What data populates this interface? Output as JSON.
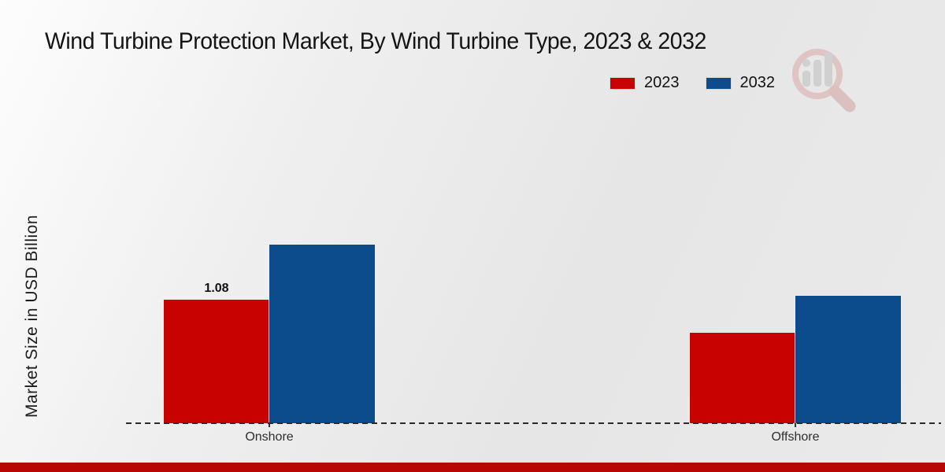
{
  "chart_data": {
    "type": "bar",
    "title": "Wind Turbine Protection Market, By Wind Turbine Type, 2023 & 2032",
    "ylabel": "Market Size in USD Billion",
    "categories": [
      "Onshore",
      "Offshore"
    ],
    "series": [
      {
        "name": "2023",
        "color": "#c80101",
        "values": [
          1.08,
          0.79
        ]
      },
      {
        "name": "2032",
        "color": "#0d4c8c",
        "values": [
          1.56,
          1.11
        ]
      }
    ],
    "bar_labels": [
      [
        "1.08",
        ""
      ],
      [
        "",
        ""
      ]
    ],
    "ylim": [
      0,
      1.8
    ],
    "grid": false,
    "legend_position": "top-right",
    "x_axis_style": "dashed-line"
  },
  "colors": {
    "series_2023": "#c80101",
    "series_2032": "#0d4c8c",
    "footer_bar": "#b80702",
    "axis_line": "#2a2a2a",
    "background": "#eaeaea"
  },
  "watermark": {
    "icon": "magnifier-bar-chart-logo"
  }
}
